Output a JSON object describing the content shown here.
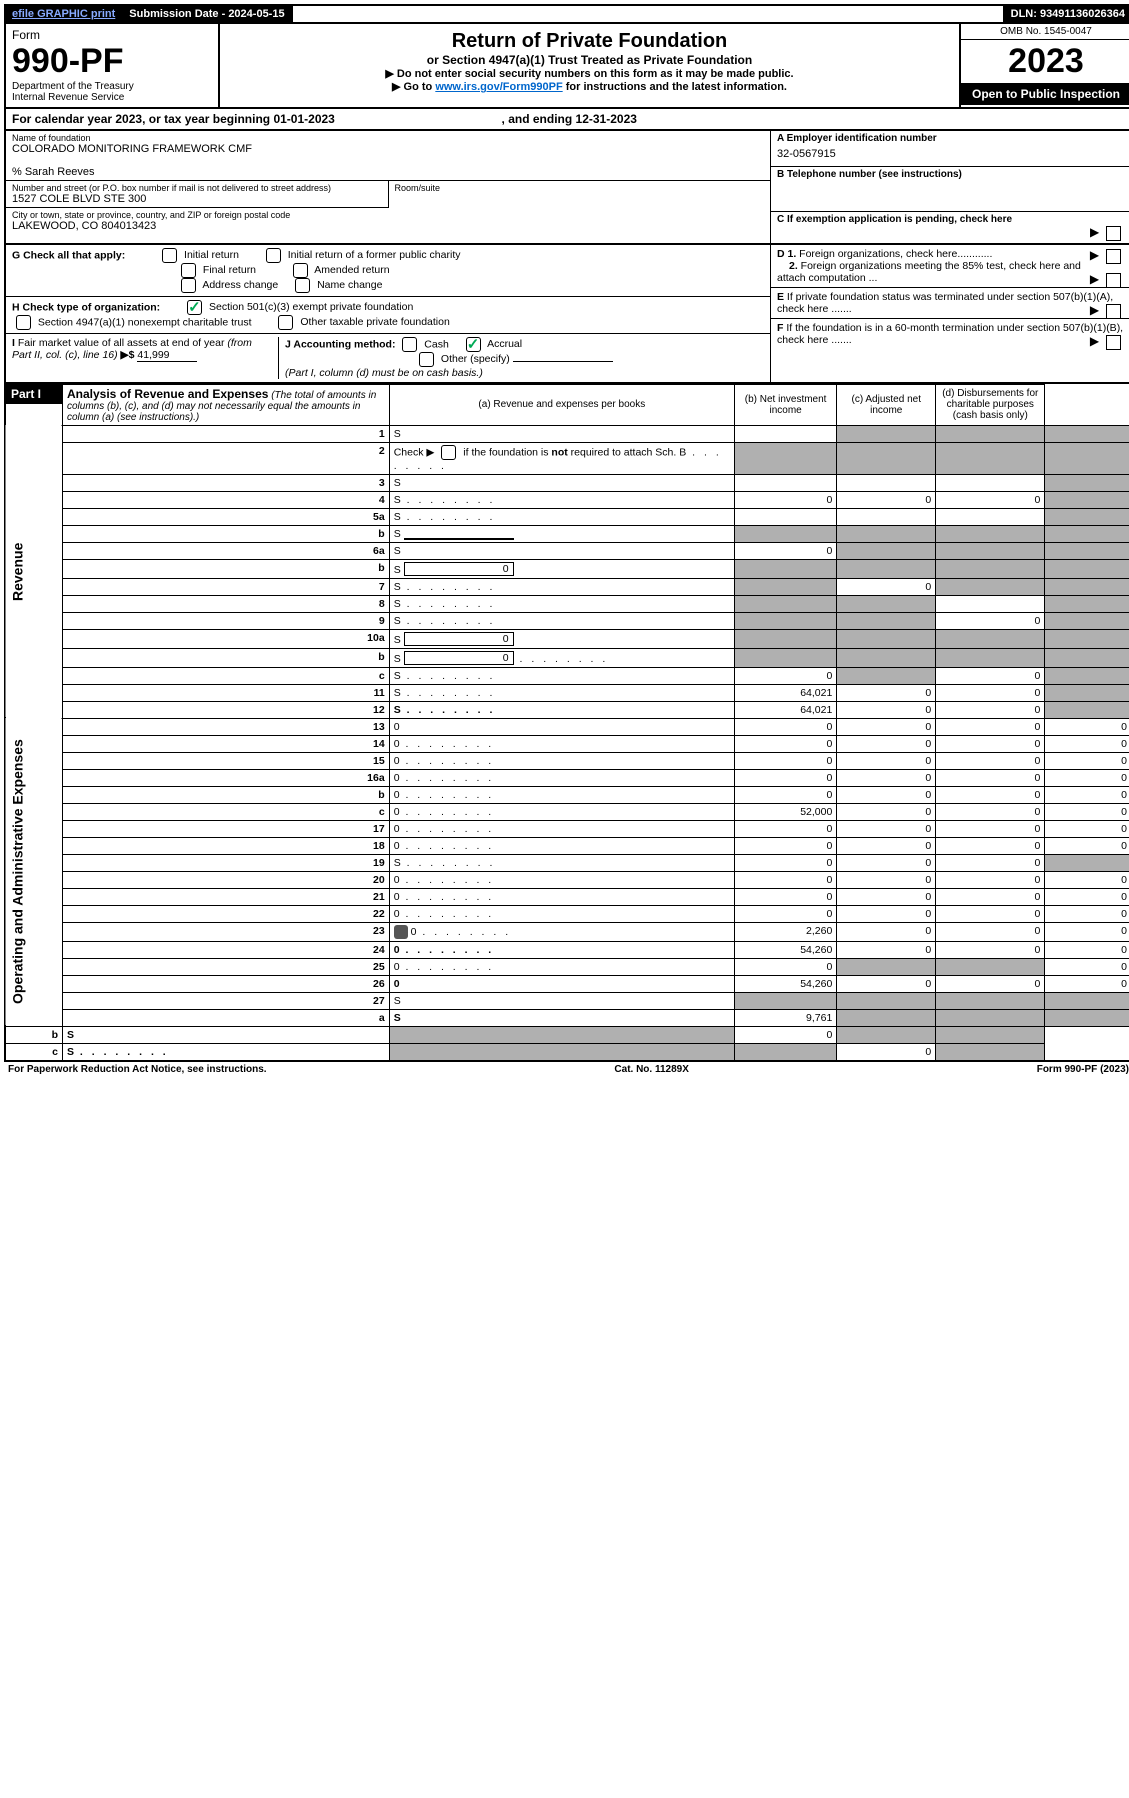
{
  "top_bar": {
    "efile": "efile GRAPHIC print",
    "submission_label": "Submission Date - 2024-05-15",
    "dln_label": "DLN: 93491136026364"
  },
  "header": {
    "form_word": "Form",
    "form_number": "990-PF",
    "dept": "Department of the Treasury",
    "irs": "Internal Revenue Service",
    "title": "Return of Private Foundation",
    "subtitle": "or Section 4947(a)(1) Trust Treated as Private Foundation",
    "instr1": "▶ Do not enter social security numbers on this form as it may be made public.",
    "instr2_pre": "▶ Go to ",
    "instr2_link": "www.irs.gov/Form990PF",
    "instr2_post": " for instructions and the latest information.",
    "omb": "OMB No. 1545-0047",
    "year": "2023",
    "open_public": "Open to Public Inspection"
  },
  "calendar": {
    "text_pre": "For calendar year 2023, or tax year beginning ",
    "begin": "01-01-2023",
    "text_mid": ", and ending ",
    "end": "12-31-2023"
  },
  "entity": {
    "name_label": "Name of foundation",
    "name": "COLORADO MONITORING FRAMEWORK CMF",
    "care_of": "% Sarah Reeves",
    "addr_label": "Number and street (or P.O. box number if mail is not delivered to street address)",
    "addr": "1527 COLE BLVD STE 300",
    "room_label": "Room/suite",
    "city_label": "City or town, state or province, country, and ZIP or foreign postal code",
    "city": "LAKEWOOD, CO  804013423",
    "ein_label": "A Employer identification number",
    "ein": "32-0567915",
    "phone_label": "B Telephone number (see instructions)",
    "c_label": "C If exemption application is pending, check here"
  },
  "checks": {
    "g_label": "G Check all that apply:",
    "g_opts": [
      "Initial return",
      "Initial return of a former public charity",
      "Final return",
      "Amended return",
      "Address change",
      "Name change"
    ],
    "h_label": "H Check type of organization:",
    "h_opts": [
      "Section 501(c)(3) exempt private foundation",
      "Section 4947(a)(1) nonexempt charitable trust",
      "Other taxable private foundation"
    ],
    "i_label": "I Fair market value of all assets at end of year (from Part II, col. (c), line 16) ▶$",
    "i_value": "41,999",
    "j_label": "J Accounting method:",
    "j_cash": "Cash",
    "j_accrual": "Accrual",
    "j_other": "Other (specify)",
    "j_note": "(Part I, column (d) must be on cash basis.)",
    "d1": "D 1. Foreign organizations, check here............",
    "d2": "2. Foreign organizations meeting the 85% test, check here and attach computation ...",
    "e": "E  If private foundation status was terminated under section 507(b)(1)(A), check here .......",
    "f": "F  If the foundation is in a 60-month termination under section 507(b)(1)(B), check here .......",
    "arrow": "▶"
  },
  "part1": {
    "label": "Part I",
    "heading": "Analysis of Revenue and Expenses",
    "note": "(The total of amounts in columns (b), (c), and (d) may not necessarily equal the amounts in column (a) (see instructions).)",
    "cols": {
      "a": "(a) Revenue and expenses per books",
      "b": "(b) Net investment income",
      "c": "(c) Adjusted net income",
      "d": "(d) Disbursements for charitable purposes (cash basis only)"
    }
  },
  "side_labels": {
    "revenue": "Revenue",
    "expenses": "Operating and Administrative Expenses"
  },
  "lines": [
    {
      "n": "1",
      "d": "S",
      "a": "",
      "b": "S",
      "c": "S"
    },
    {
      "n": "2",
      "d": "S",
      "a": "S",
      "b": "S",
      "c": "S",
      "dots": true
    },
    {
      "n": "3",
      "d": "S",
      "a": "",
      "b": "",
      "c": ""
    },
    {
      "n": "4",
      "d": "S",
      "a": "0",
      "b": "0",
      "c": "0",
      "dots": true
    },
    {
      "n": "5a",
      "d": "S",
      "a": "",
      "b": "",
      "c": "",
      "dots": true
    },
    {
      "n": "b",
      "d": "S",
      "a": "S",
      "b": "S",
      "c": "S",
      "inline": true,
      "ival": ""
    },
    {
      "n": "6a",
      "d": "S",
      "a": "0",
      "b": "S",
      "c": "S"
    },
    {
      "n": "b",
      "d": "S",
      "a": "S",
      "b": "S",
      "c": "S",
      "inline": true,
      "ival": "0"
    },
    {
      "n": "7",
      "d": "S",
      "a": "S",
      "b": "0",
      "c": "S",
      "dots": true
    },
    {
      "n": "8",
      "d": "S",
      "a": "S",
      "b": "S",
      "c": "",
      "dots": true
    },
    {
      "n": "9",
      "d": "S",
      "a": "S",
      "b": "S",
      "c": "0",
      "dots": true
    },
    {
      "n": "10a",
      "d": "S",
      "a": "S",
      "b": "S",
      "c": "S",
      "inline": true,
      "ival": "0"
    },
    {
      "n": "b",
      "d": "S",
      "a": "S",
      "b": "S",
      "c": "S",
      "inline": true,
      "ival": "0",
      "dots": true
    },
    {
      "n": "c",
      "d": "S",
      "a": "0",
      "b": "S",
      "c": "0",
      "dots": true
    },
    {
      "n": "11",
      "d": "S",
      "a": "64,021",
      "b": "0",
      "c": "0",
      "dots": true
    },
    {
      "n": "12",
      "d": "S",
      "a": "64,021",
      "b": "0",
      "c": "0",
      "bold": true,
      "dots": true
    },
    {
      "n": "13",
      "d": "0",
      "a": "0",
      "b": "0",
      "c": "0"
    },
    {
      "n": "14",
      "d": "0",
      "a": "0",
      "b": "0",
      "c": "0",
      "dots": true
    },
    {
      "n": "15",
      "d": "0",
      "a": "0",
      "b": "0",
      "c": "0",
      "dots": true
    },
    {
      "n": "16a",
      "d": "0",
      "a": "0",
      "b": "0",
      "c": "0",
      "dots": true
    },
    {
      "n": "b",
      "d": "0",
      "a": "0",
      "b": "0",
      "c": "0",
      "dots": true
    },
    {
      "n": "c",
      "d": "0",
      "a": "52,000",
      "b": "0",
      "c": "0",
      "dots": true
    },
    {
      "n": "17",
      "d": "0",
      "a": "0",
      "b": "0",
      "c": "0",
      "dots": true
    },
    {
      "n": "18",
      "d": "0",
      "a": "0",
      "b": "0",
      "c": "0",
      "dots": true
    },
    {
      "n": "19",
      "d": "S",
      "a": "0",
      "b": "0",
      "c": "0",
      "dots": true
    },
    {
      "n": "20",
      "d": "0",
      "a": "0",
      "b": "0",
      "c": "0",
      "dots": true
    },
    {
      "n": "21",
      "d": "0",
      "a": "0",
      "b": "0",
      "c": "0",
      "dots": true
    },
    {
      "n": "22",
      "d": "0",
      "a": "0",
      "b": "0",
      "c": "0",
      "dots": true
    },
    {
      "n": "23",
      "d": "0",
      "a": "2,260",
      "b": "0",
      "c": "0",
      "dots": true,
      "clip": true
    },
    {
      "n": "24",
      "d": "0",
      "a": "54,260",
      "b": "0",
      "c": "0",
      "bold": true,
      "dots": true
    },
    {
      "n": "25",
      "d": "0",
      "a": "0",
      "b": "S",
      "c": "S",
      "dots": true
    },
    {
      "n": "26",
      "d": "0",
      "a": "54,260",
      "b": "0",
      "c": "0",
      "bold": true
    },
    {
      "n": "27",
      "d": "S",
      "a": "S",
      "b": "S",
      "c": "S"
    },
    {
      "n": "a",
      "d": "S",
      "a": "9,761",
      "b": "S",
      "c": "S",
      "bold": true
    },
    {
      "n": "b",
      "d": "S",
      "a": "S",
      "b": "0",
      "c": "S",
      "bold": true
    },
    {
      "n": "c",
      "d": "S",
      "a": "S",
      "b": "S",
      "c": "0",
      "bold": true,
      "dots": true
    }
  ],
  "footer": {
    "left": "For Paperwork Reduction Act Notice, see instructions.",
    "mid": "Cat. No. 11289X",
    "right": "Form 990-PF (2023)"
  },
  "colors": {
    "link": "#0066cc",
    "shaded": "#b0b0b0",
    "check": "#00aa55"
  }
}
